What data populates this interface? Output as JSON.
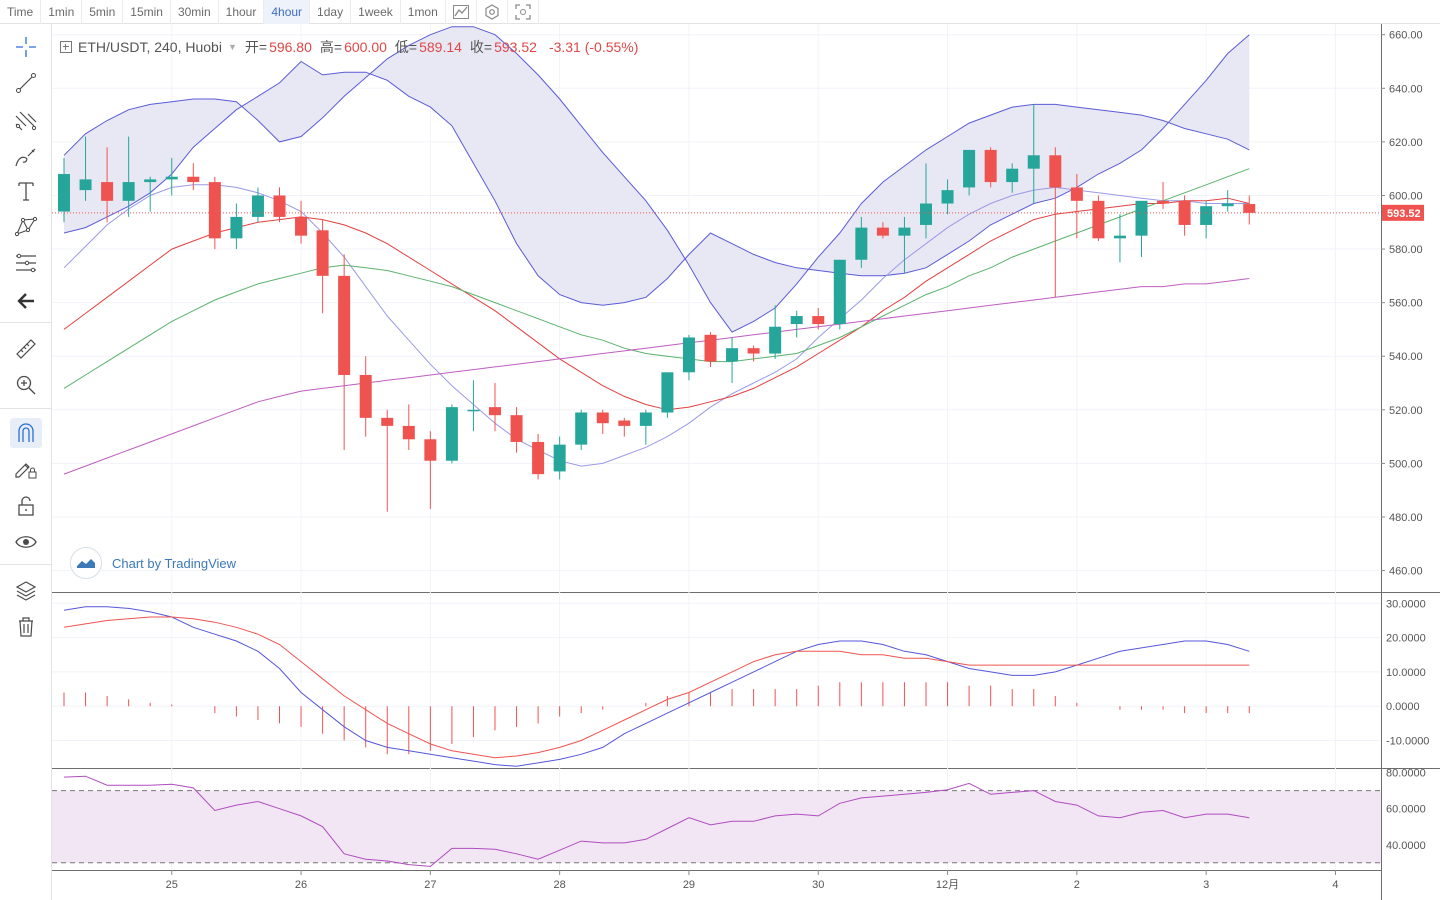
{
  "intervals": [
    "Time",
    "1min",
    "5min",
    "15min",
    "30min",
    "1hour",
    "4hour",
    "1day",
    "1week",
    "1mon"
  ],
  "active_interval": "4hour",
  "topbar_icons": [
    "indicator-icon",
    "settings-icon",
    "fullscreen-icon"
  ],
  "toolbar_icons": [
    "crosshair-icon",
    "trend-line-icon",
    "pitchfork-icon",
    "brush-icon",
    "text-icon",
    "pattern-icon",
    "fib-icon",
    "back-arrow-icon",
    "ruler-icon",
    "zoom-icon",
    "magnet-icon",
    "lock-drawing-icon",
    "unlock-icon",
    "eye-icon",
    "layers-icon",
    "trash-icon"
  ],
  "legend": {
    "symbol": "ETH/USDT, 240, Huobi",
    "open_label": "开=",
    "open": "596.80",
    "high_label": "高=",
    "high": "600.00",
    "low_label": "低=",
    "low": "589.14",
    "close_label": "收=",
    "close": "593.52",
    "change": "-3.31 (-0.55%)"
  },
  "watermark": "Chart by TradingView",
  "last_price": "593.52",
  "colors": {
    "up": "#26a69a",
    "down": "#ef5350",
    "bb": "#5b5bd6",
    "bb_fill": "#e4e4f2",
    "ma_red": "#e34040",
    "ma_green": "#5ab36b",
    "ma_purple": "#c05ec0",
    "ma_light": "#9a9ae8",
    "macd_blue": "#5656d8",
    "macd_red": "#ef5350",
    "rsi": "#b04cc0",
    "rsi_fill": "#f2e6f4"
  },
  "chart_data": [
    {
      "type": "candlestick",
      "title": "ETH/USDT, 240, Huobi",
      "ylim": [
        452,
        664
      ],
      "y_ticks": [
        "660.00",
        "640.00",
        "620.00",
        "600.00",
        "580.00",
        "560.00",
        "540.00",
        "520.00",
        "500.00",
        "480.00",
        "460.00"
      ],
      "x_ticks": [
        "25",
        "26",
        "27",
        "28",
        "29",
        "30",
        "12月",
        "2",
        "3",
        "4"
      ],
      "candles": [
        {
          "o": 594,
          "h": 614,
          "l": 590,
          "c": 608
        },
        {
          "o": 602,
          "h": 622,
          "l": 598,
          "c": 606
        },
        {
          "o": 605,
          "h": 618,
          "l": 590,
          "c": 598
        },
        {
          "o": 598,
          "h": 622,
          "l": 592,
          "c": 605
        },
        {
          "o": 605,
          "h": 607,
          "l": 594,
          "c": 606
        },
        {
          "o": 606,
          "h": 614,
          "l": 600,
          "c": 607
        },
        {
          "o": 607,
          "h": 612,
          "l": 602,
          "c": 605
        },
        {
          "o": 605,
          "h": 607,
          "l": 580,
          "c": 584
        },
        {
          "o": 584,
          "h": 597,
          "l": 580,
          "c": 592
        },
        {
          "o": 592,
          "h": 603,
          "l": 590,
          "c": 600
        },
        {
          "o": 600,
          "h": 603,
          "l": 590,
          "c": 592
        },
        {
          "o": 592,
          "h": 598,
          "l": 582,
          "c": 585
        },
        {
          "o": 587,
          "h": 591,
          "l": 556,
          "c": 570
        },
        {
          "o": 570,
          "h": 578,
          "l": 505,
          "c": 533
        },
        {
          "o": 533,
          "h": 540,
          "l": 510,
          "c": 517
        },
        {
          "o": 517,
          "h": 520,
          "l": 482,
          "c": 514
        },
        {
          "o": 514,
          "h": 522,
          "l": 505,
          "c": 509
        },
        {
          "o": 509,
          "h": 512,
          "l": 483,
          "c": 501
        },
        {
          "o": 501,
          "h": 522,
          "l": 500,
          "c": 521
        },
        {
          "o": 520,
          "h": 531,
          "l": 512,
          "c": 520
        },
        {
          "o": 521,
          "h": 530,
          "l": 512,
          "c": 518
        },
        {
          "o": 518,
          "h": 521,
          "l": 504,
          "c": 508
        },
        {
          "o": 508,
          "h": 511,
          "l": 494,
          "c": 496
        },
        {
          "o": 497,
          "h": 510,
          "l": 494,
          "c": 507
        },
        {
          "o": 507,
          "h": 520,
          "l": 505,
          "c": 519
        },
        {
          "o": 519,
          "h": 520,
          "l": 511,
          "c": 515
        },
        {
          "o": 516,
          "h": 517,
          "l": 510,
          "c": 514
        },
        {
          "o": 514,
          "h": 520,
          "l": 507,
          "c": 519
        },
        {
          "o": 519,
          "h": 534,
          "l": 517,
          "c": 534
        },
        {
          "o": 534,
          "h": 548,
          "l": 531,
          "c": 547
        },
        {
          "o": 548,
          "h": 549,
          "l": 536,
          "c": 538
        },
        {
          "o": 538,
          "h": 547,
          "l": 530,
          "c": 543
        },
        {
          "o": 543,
          "h": 544,
          "l": 538,
          "c": 541
        },
        {
          "o": 541,
          "h": 559,
          "l": 539,
          "c": 551
        },
        {
          "o": 552,
          "h": 557,
          "l": 547,
          "c": 555
        },
        {
          "o": 555,
          "h": 558,
          "l": 550,
          "c": 552
        },
        {
          "o": 552,
          "h": 576,
          "l": 550,
          "c": 576
        },
        {
          "o": 576,
          "h": 592,
          "l": 573,
          "c": 588
        },
        {
          "o": 588,
          "h": 590,
          "l": 584,
          "c": 585
        },
        {
          "o": 585,
          "h": 592,
          "l": 571,
          "c": 588
        },
        {
          "o": 589,
          "h": 612,
          "l": 584,
          "c": 597
        },
        {
          "o": 597,
          "h": 606,
          "l": 593,
          "c": 602
        },
        {
          "o": 603,
          "h": 617,
          "l": 600,
          "c": 617
        },
        {
          "o": 617,
          "h": 618,
          "l": 603,
          "c": 605
        },
        {
          "o": 605,
          "h": 612,
          "l": 601,
          "c": 610
        },
        {
          "o": 610,
          "h": 634,
          "l": 597,
          "c": 615
        },
        {
          "o": 615,
          "h": 618,
          "l": 562,
          "c": 603
        },
        {
          "o": 603,
          "h": 608,
          "l": 584,
          "c": 598
        },
        {
          "o": 598,
          "h": 600,
          "l": 583,
          "c": 584
        },
        {
          "o": 584,
          "h": 593,
          "l": 575,
          "c": 585
        },
        {
          "o": 585,
          "h": 598,
          "l": 577,
          "c": 598
        },
        {
          "o": 598,
          "h": 605,
          "l": 595,
          "c": 597
        },
        {
          "o": 598,
          "h": 600,
          "l": 585,
          "c": 589
        },
        {
          "o": 589,
          "h": 598,
          "l": 584,
          "c": 596
        },
        {
          "o": 596,
          "h": 602,
          "l": 594,
          "c": 597
        },
        {
          "o": 596.8,
          "h": 600,
          "l": 589.14,
          "c": 593.52
        }
      ],
      "series": [
        {
          "values": [
            615,
            623,
            628,
            632,
            634,
            635,
            636,
            636,
            635,
            628,
            620,
            622,
            629,
            637,
            644,
            651,
            656,
            660,
            663,
            663,
            660,
            653,
            645,
            636,
            626,
            616,
            607,
            598,
            587,
            574,
            560,
            549,
            553,
            558,
            567,
            577,
            586,
            597,
            605,
            611,
            617,
            622,
            627,
            630,
            633,
            634,
            634,
            633,
            632,
            631,
            630,
            628,
            625,
            623,
            621,
            617
          ]
        },
        {
          "values": [
            586,
            588,
            592,
            596,
            601,
            608,
            618,
            625,
            632,
            637,
            642,
            650,
            645,
            646,
            646,
            643,
            637,
            633,
            626,
            612,
            598,
            582,
            570,
            563,
            560,
            559,
            560,
            562,
            569,
            578,
            586,
            582,
            578,
            575,
            573,
            572,
            571,
            570,
            570,
            571,
            573,
            578,
            583,
            589,
            593,
            597,
            599,
            603,
            608,
            612,
            617,
            625,
            634,
            643,
            653,
            660
          ]
        },
        {
          "values": [
            573,
            581,
            589,
            595,
            600,
            603,
            604,
            604,
            603,
            601,
            598,
            594,
            586,
            577,
            566,
            555,
            546,
            537,
            529,
            522,
            515,
            509,
            505,
            501,
            499,
            500,
            503,
            506,
            510,
            515,
            521,
            526,
            530,
            534,
            539,
            547,
            554,
            561,
            569,
            576,
            582,
            588,
            593,
            597,
            600,
            602,
            603,
            602,
            601,
            600,
            599,
            598,
            598,
            597,
            597,
            597
          ]
        },
        {
          "values": [
            550,
            556,
            562,
            568,
            574,
            580,
            583,
            586,
            588,
            590,
            591,
            592,
            591,
            589,
            586,
            582,
            577,
            572,
            567,
            562,
            557,
            551,
            545,
            539,
            534,
            529,
            525,
            522,
            520,
            521,
            523,
            525,
            528,
            532,
            536,
            541,
            546,
            551,
            557,
            562,
            568,
            573,
            578,
            583,
            587,
            591,
            593,
            594,
            595,
            596,
            597,
            597,
            598,
            598,
            599,
            597
          ]
        },
        {
          "values": [
            528,
            533,
            538,
            543,
            548,
            553,
            557,
            561,
            564,
            567,
            569,
            571,
            573,
            574,
            573,
            572,
            570,
            568,
            566,
            563,
            560,
            557,
            554,
            551,
            548,
            546,
            543,
            541,
            540,
            539,
            538,
            538,
            539,
            540,
            541,
            544,
            547,
            551,
            555,
            559,
            563,
            566,
            570,
            573,
            577,
            580,
            583,
            586,
            589,
            592,
            595,
            598,
            601,
            604,
            607,
            610
          ]
        },
        {
          "values": [
            496,
            499,
            502,
            505,
            508,
            511,
            514,
            517,
            520,
            523,
            525,
            527,
            528,
            529,
            530,
            531,
            532,
            533,
            534,
            535,
            536,
            537,
            538,
            539,
            540,
            541,
            542,
            543,
            544,
            545,
            546,
            547,
            548,
            549,
            550,
            551,
            552,
            553,
            554,
            555,
            556,
            557,
            558,
            559,
            560,
            561,
            562,
            563,
            564,
            565,
            566,
            566,
            567,
            567,
            568,
            569
          ]
        }
      ]
    },
    {
      "type": "bar+line",
      "title": "MACD",
      "ylim": [
        -18,
        33
      ],
      "y_ticks": [
        "30.0000",
        "20.0000",
        "10.0000",
        "0.0000",
        "-10.0000"
      ],
      "series": [
        {
          "values": [
            28,
            29,
            29,
            28.5,
            27.5,
            26,
            23,
            21,
            19,
            16,
            11,
            4,
            -1,
            -6,
            -10,
            -12,
            -13,
            -14,
            -15,
            -16,
            -17,
            -17.5,
            -16.5,
            -15.5,
            -14,
            -12,
            -8,
            -5,
            -2,
            1,
            4,
            7,
            10,
            13,
            16,
            18,
            19,
            19,
            18,
            16,
            15,
            13,
            11,
            10,
            9,
            9,
            10,
            12,
            14,
            16,
            17,
            18,
            19,
            19,
            18,
            16
          ]
        },
        {
          "values": [
            23,
            24,
            25,
            25.5,
            26,
            26,
            25.5,
            24.5,
            23,
            21,
            18,
            13,
            8,
            3,
            -1,
            -5,
            -8,
            -11,
            -13,
            -14,
            -15,
            -14.5,
            -13.5,
            -12,
            -10,
            -7,
            -4,
            -1,
            2,
            4,
            7,
            10,
            13,
            15,
            16,
            16,
            16,
            15,
            15,
            14,
            14,
            13,
            12,
            12,
            12,
            12,
            12,
            12,
            12,
            12,
            12,
            12,
            12,
            12,
            12,
            12
          ]
        },
        {
          "values": [
            4,
            4,
            3,
            2,
            1,
            0.5,
            0,
            -2,
            -3,
            -4,
            -5,
            -6,
            -8,
            -10,
            -12,
            -14,
            -14,
            -13,
            -11,
            -9,
            -7,
            -6,
            -5,
            -3,
            -2,
            -1,
            0,
            1,
            3,
            4,
            4,
            5,
            5,
            5,
            5,
            6,
            7,
            7,
            7,
            7,
            7,
            7,
            6,
            6,
            5,
            5,
            3,
            1,
            0,
            -1,
            -1,
            -1,
            -2,
            -2,
            -2,
            -2
          ]
        }
      ]
    },
    {
      "type": "line",
      "title": "RSI",
      "ylim": [
        26,
        82
      ],
      "y_ticks": [
        "80.0000",
        "60.0000",
        "40.0000"
      ],
      "bands": [
        70,
        30
      ],
      "series": [
        {
          "values": [
            77.5,
            78,
            73,
            73,
            73,
            73.5,
            71.5,
            59,
            62,
            64,
            60,
            56,
            50,
            35,
            32,
            31,
            29,
            28,
            38,
            38,
            37.5,
            35,
            32,
            37,
            42,
            41,
            41,
            43,
            49,
            55,
            51,
            53,
            53,
            56,
            57,
            56,
            63,
            66,
            67,
            68,
            69,
            70.5,
            74,
            68,
            69,
            70,
            64,
            62,
            56,
            55,
            58,
            59,
            55,
            57,
            57,
            55
          ]
        }
      ]
    }
  ]
}
